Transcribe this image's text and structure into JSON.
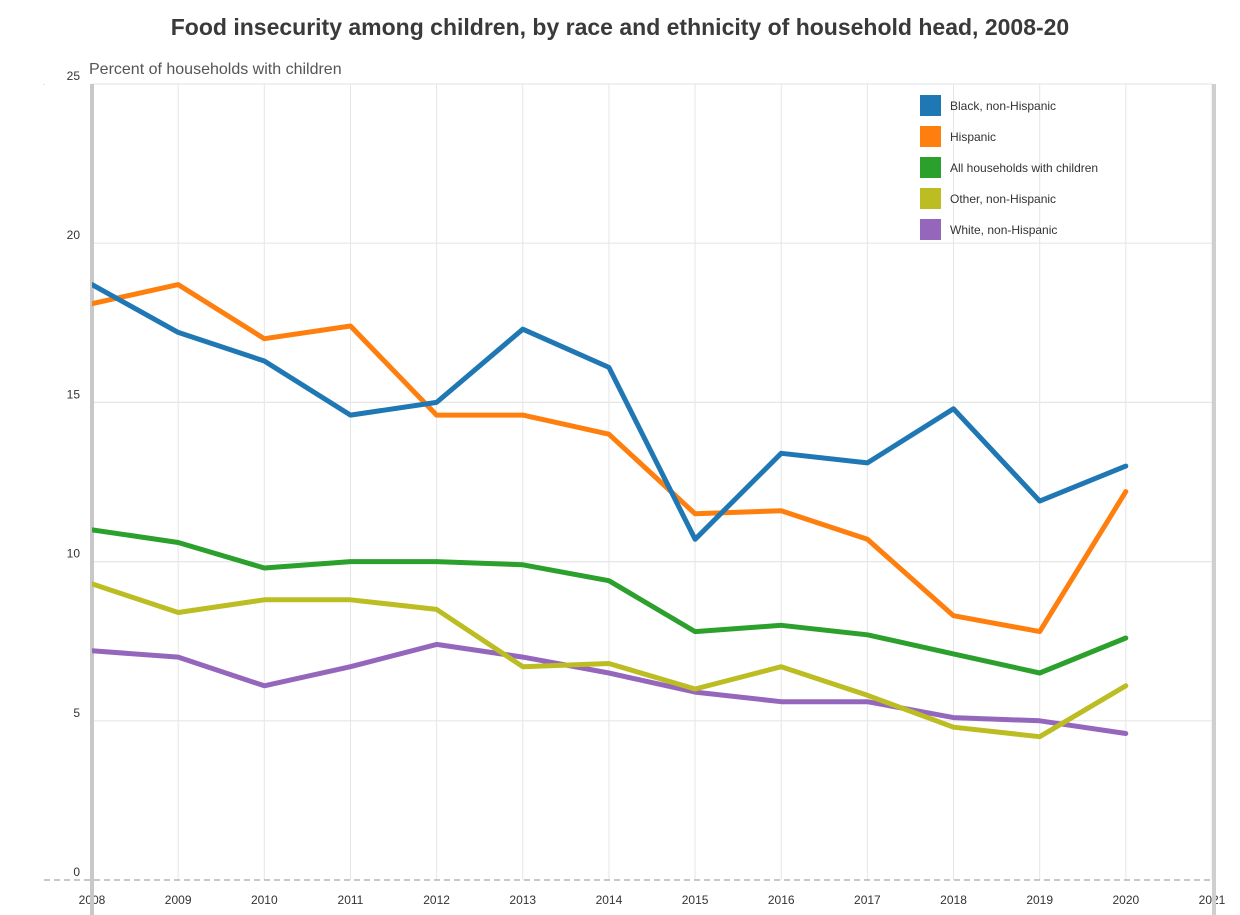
{
  "chart_data": {
    "type": "line",
    "title": "Food insecurity among children, by race and ethnicity of household head, 2008-20",
    "ylabel": "Percent of households with children",
    "xlabel": "",
    "x": [
      2008,
      2009,
      2010,
      2011,
      2012,
      2013,
      2014,
      2015,
      2016,
      2017,
      2018,
      2019,
      2020
    ],
    "x_tick_labels": [
      "2008",
      "2009",
      "2010",
      "2011",
      "2012",
      "2013",
      "2014",
      "2015",
      "2016",
      "2017",
      "2018",
      "2019",
      "2020",
      "2021"
    ],
    "xlim": [
      2008,
      2021
    ],
    "ylim": [
      0,
      25
    ],
    "y_ticks": [
      0,
      5,
      10,
      15,
      20,
      25
    ],
    "grid": true,
    "legend_position": "top-right",
    "series": [
      {
        "name": "Black, non-Hispanic",
        "color": "#1f77b4",
        "values": [
          18.7,
          17.2,
          16.3,
          14.6,
          15.0,
          17.3,
          16.1,
          10.7,
          13.4,
          13.1,
          14.8,
          11.9,
          13.0
        ]
      },
      {
        "name": "Hispanic",
        "color": "#ff7f0e",
        "values": [
          18.1,
          18.7,
          17.0,
          17.4,
          14.6,
          14.6,
          14.0,
          11.5,
          11.6,
          10.7,
          8.3,
          7.8,
          12.2
        ]
      },
      {
        "name": "All households with children",
        "color": "#2ca02c",
        "values": [
          11.0,
          10.6,
          9.8,
          10.0,
          10.0,
          9.9,
          9.4,
          7.8,
          8.0,
          7.7,
          7.1,
          6.5,
          7.6
        ]
      },
      {
        "name": "Other, non-Hispanic",
        "color": "#bcbd22",
        "values": [
          9.3,
          8.4,
          8.8,
          8.8,
          8.5,
          6.7,
          6.8,
          6.0,
          6.7,
          5.8,
          4.8,
          4.5,
          6.1
        ]
      },
      {
        "name": "White, non-Hispanic",
        "color": "#9467bd",
        "values": [
          7.2,
          7.0,
          6.1,
          6.7,
          7.4,
          7.0,
          6.5,
          5.9,
          5.6,
          5.6,
          5.1,
          5.0,
          4.6
        ]
      }
    ]
  }
}
